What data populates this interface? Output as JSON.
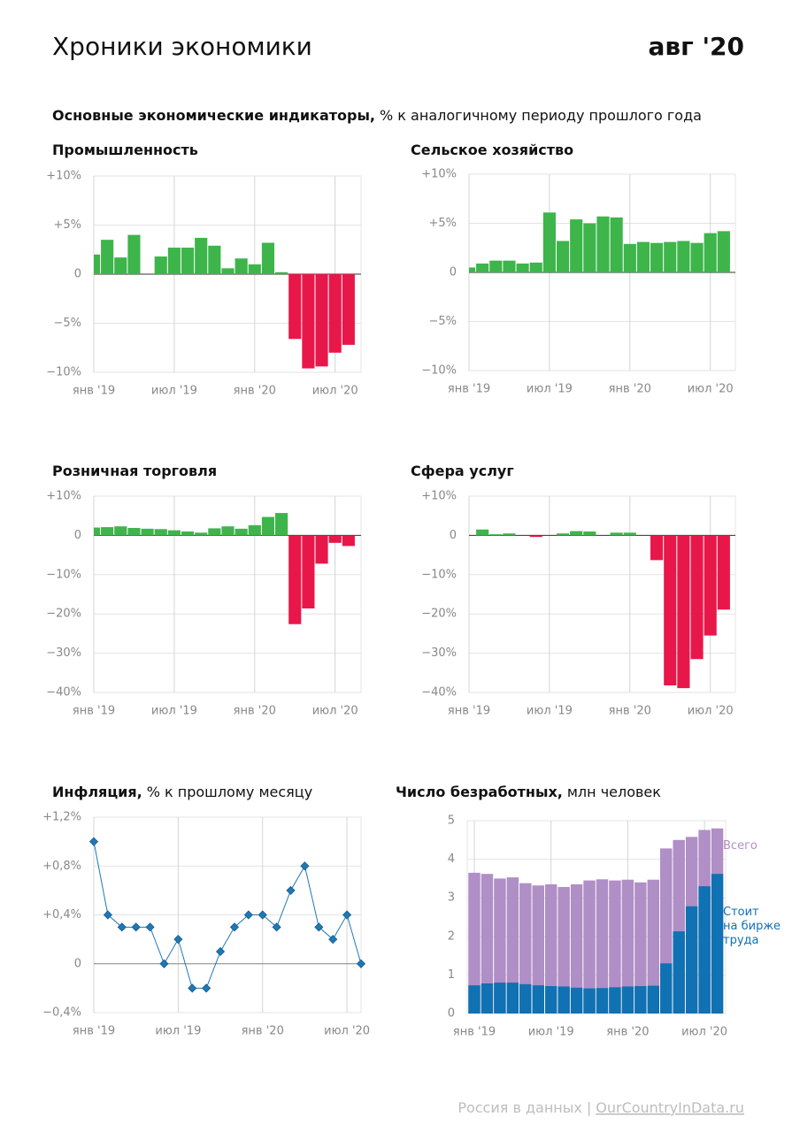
{
  "header": {
    "title": "Хроники экономики",
    "date": "авг '20",
    "section_title": "Основные экономические индикаторы,",
    "section_subtitle": "% к аналогичному периоду прошлого года"
  },
  "chart_data": [
    {
      "type": "bar",
      "title": "Промышленность",
      "categories": [
        "янв '19",
        null,
        null,
        null,
        null,
        null,
        "июл '19",
        null,
        null,
        null,
        null,
        null,
        "янв '20",
        null,
        null,
        null,
        null,
        null,
        "июл '20",
        null
      ],
      "values": [
        2.0,
        3.5,
        1.7,
        4.0,
        0.0,
        1.8,
        2.7,
        2.7,
        3.7,
        2.9,
        0.6,
        1.6,
        1.0,
        3.2,
        0.2,
        -6.6,
        -9.6,
        -9.4,
        -8.0,
        -7.2
      ],
      "color": "#3db54a",
      "negative_color": "#e8174a",
      "ylim": [
        -10,
        10
      ],
      "yticks": [
        {
          "value": -10,
          "label": "−10%"
        },
        {
          "value": -5,
          "label": "−5%"
        },
        0,
        {
          "value": 5,
          "label": "+5%"
        },
        {
          "value": 10,
          "label": "+10%"
        }
      ],
      "grid": true
    },
    {
      "type": "bar",
      "title": "Сельское хозяйство",
      "categories": [
        "янв '19",
        null,
        null,
        null,
        null,
        null,
        "июл '19",
        null,
        null,
        null,
        null,
        null,
        "янв '20",
        null,
        null,
        null,
        null,
        null,
        "июл '20",
        null
      ],
      "values": [
        0.5,
        0.9,
        1.2,
        1.2,
        0.9,
        1.0,
        6.1,
        3.2,
        5.4,
        5.0,
        5.7,
        5.6,
        2.9,
        3.1,
        3.0,
        3.1,
        3.2,
        3.0,
        4.0,
        4.2
      ],
      "color": "#3db54a",
      "negative_color": "#e8174a",
      "ylim": [
        -10,
        10
      ],
      "yticks": [
        {
          "value": -10,
          "label": "−10%"
        },
        {
          "value": -5,
          "label": "−5%"
        },
        0,
        {
          "value": 5,
          "label": "+5%"
        },
        {
          "value": 10,
          "label": "+10%"
        }
      ],
      "grid": true
    },
    {
      "type": "bar",
      "title": "Розничная торговля",
      "categories": [
        "янв '19",
        null,
        null,
        null,
        null,
        null,
        "июл '19",
        null,
        null,
        null,
        null,
        null,
        "янв '20",
        null,
        null,
        null,
        null,
        null,
        "июл '20",
        null
      ],
      "values": [
        2.0,
        2.1,
        2.3,
        1.9,
        1.7,
        1.6,
        1.3,
        1.0,
        0.7,
        1.8,
        2.3,
        1.7,
        2.6,
        4.7,
        5.7,
        -22.6,
        -18.6,
        -7.2,
        -1.9,
        -2.7
      ],
      "color": "#3db54a",
      "negative_color": "#e8174a",
      "ylim": [
        -40,
        10
      ],
      "yticks": [
        {
          "value": -40,
          "label": "−40%"
        },
        {
          "value": -30,
          "label": "−30%"
        },
        {
          "value": -20,
          "label": "−20%"
        },
        {
          "value": -10,
          "label": "−10%"
        },
        0,
        {
          "value": 10,
          "label": "+10%"
        }
      ],
      "grid": true
    },
    {
      "type": "bar",
      "title": "Сфера услуг",
      "categories": [
        "янв '19",
        null,
        null,
        null,
        null,
        null,
        "июл '19",
        null,
        null,
        null,
        null,
        null,
        "янв '20",
        null,
        null,
        null,
        null,
        null,
        "июл '20",
        null
      ],
      "values": [
        0.0,
        1.5,
        0.3,
        0.5,
        0.0,
        -0.4,
        0.0,
        0.5,
        1.1,
        1.0,
        0.0,
        0.7,
        0.7,
        0.0,
        -6.3,
        -38.2,
        -38.9,
        -31.5,
        -25.5,
        -18.9
      ],
      "color": "#3db54a",
      "negative_color": "#e8174a",
      "ylim": [
        -40,
        10
      ],
      "yticks": [
        {
          "value": -40,
          "label": "−40%"
        },
        {
          "value": -30,
          "label": "−30%"
        },
        {
          "value": -20,
          "label": "−20%"
        },
        {
          "value": -10,
          "label": "−10%"
        },
        0,
        {
          "value": 10,
          "label": "+10%"
        }
      ],
      "grid": true
    },
    {
      "type": "line",
      "title": "Инфляция,",
      "subtitle": "% к прошлому месяцу",
      "categories": [
        "янв '19",
        null,
        null,
        null,
        null,
        null,
        "июл '19",
        null,
        null,
        null,
        null,
        null,
        "янв '20",
        null,
        null,
        null,
        null,
        null,
        "июл '20",
        null
      ],
      "values": [
        1.0,
        0.4,
        0.3,
        0.3,
        0.3,
        0.0,
        0.2,
        -0.2,
        -0.2,
        0.1,
        0.3,
        0.4,
        0.4,
        0.3,
        0.6,
        0.8,
        0.3,
        0.2,
        0.4,
        0.0
      ],
      "color": "#1f78b4",
      "marker": "diamond",
      "ylim": [
        -0.4,
        1.2
      ],
      "yticks": [
        {
          "value": -0.4,
          "label": "−0,4%"
        },
        0,
        {
          "value": 0.4,
          "label": "+0,4%"
        },
        {
          "value": 0.8,
          "label": "+0,8%"
        },
        {
          "value": 1.2,
          "label": "+1,2%"
        }
      ],
      "grid": true
    },
    {
      "type": "bar",
      "bar_mode": "overlay",
      "title": "Число безработных,",
      "subtitle": "млн человек",
      "categories": [
        "янв '19",
        null,
        null,
        null,
        null,
        null,
        "июл '19",
        null,
        null,
        null,
        null,
        null,
        "янв '20",
        null,
        null,
        null,
        null,
        null,
        "июл '20",
        null
      ],
      "series": [
        {
          "name": "Всего",
          "color": "#b08ec6",
          "values": [
            3.65,
            3.62,
            3.5,
            3.53,
            3.38,
            3.32,
            3.35,
            3.28,
            3.35,
            3.45,
            3.48,
            3.45,
            3.47,
            3.4,
            3.47,
            4.28,
            4.5,
            4.58,
            4.76,
            4.8
          ]
        },
        {
          "name": "Стоит\nна бирже\nтруда",
          "color": "#1071b3",
          "values": [
            0.73,
            0.78,
            0.8,
            0.8,
            0.76,
            0.73,
            0.71,
            0.7,
            0.67,
            0.65,
            0.66,
            0.68,
            0.7,
            0.71,
            0.72,
            1.3,
            2.13,
            2.78,
            3.3,
            3.62
          ]
        }
      ],
      "ylim": [
        0,
        5
      ],
      "yticks": [
        0,
        1,
        2,
        3,
        4,
        5
      ],
      "grid": true
    }
  ],
  "footer": {
    "source": "Россия в данных",
    "separator": "|",
    "link": "OurCountryInData.ru"
  }
}
